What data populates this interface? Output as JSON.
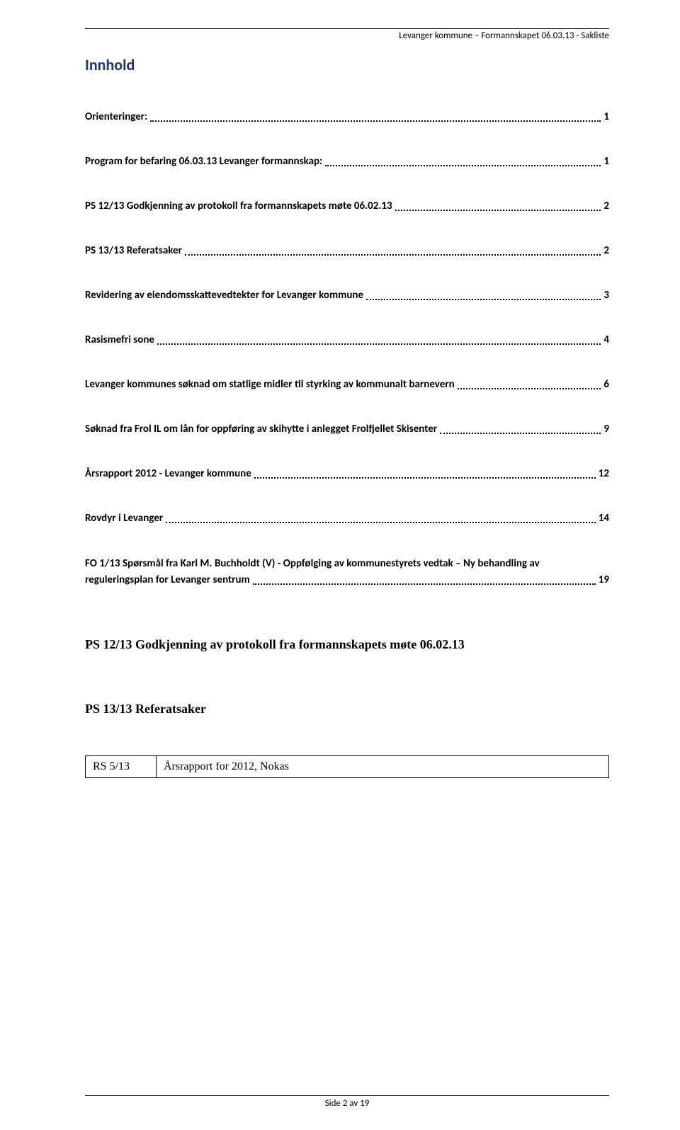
{
  "header": {
    "right_text": "Levanger kommune – Formannskapet 06.03.13 - Sakliste"
  },
  "title": "Innhold",
  "toc": [
    {
      "text": "Orienteringer:",
      "page": "1"
    },
    {
      "text": "Program for befaring 06.03.13 Levanger formannskap:",
      "page": "1"
    },
    {
      "text": "PS 12/13 Godkjenning av protokoll fra formannskapets møte 06.02.13",
      "page": "2"
    },
    {
      "text": "PS 13/13 Referatsaker",
      "page": "2"
    },
    {
      "text": "Revidering av eiendomsskattevedtekter for Levanger kommune",
      "page": "3"
    },
    {
      "text": "Rasismefri sone",
      "page": "4"
    },
    {
      "text": "Levanger kommunes søknad om statlige midler til styrking av kommunalt barnevern",
      "page": "6"
    },
    {
      "text": "Søknad fra Frol IL om lån for oppføring av skihytte i anlegget Frolfjellet Skisenter",
      "page": "9"
    },
    {
      "text": "Årsrapport 2012 - Levanger kommune",
      "page": "12"
    },
    {
      "text": "Rovdyr i Levanger",
      "page": "14"
    }
  ],
  "toc_multiline": {
    "line1": "FO 1/13 Spørsmål fra Karl M. Buchholdt (V) - Oppfølging av kommunestyrets vedtak – Ny behandling av",
    "line2_text": "reguleringsplan for Levanger sentrum",
    "page": "19"
  },
  "sections": [
    {
      "heading": "PS 12/13 Godkjenning av protokoll fra formannskapets møte 06.02.13"
    },
    {
      "heading": "PS 13/13 Referatsaker"
    }
  ],
  "table": {
    "left": "RS 5/13",
    "right": "Årsrapport for 2012, Nokas"
  },
  "footer": {
    "text": "Side 2 av 19"
  }
}
